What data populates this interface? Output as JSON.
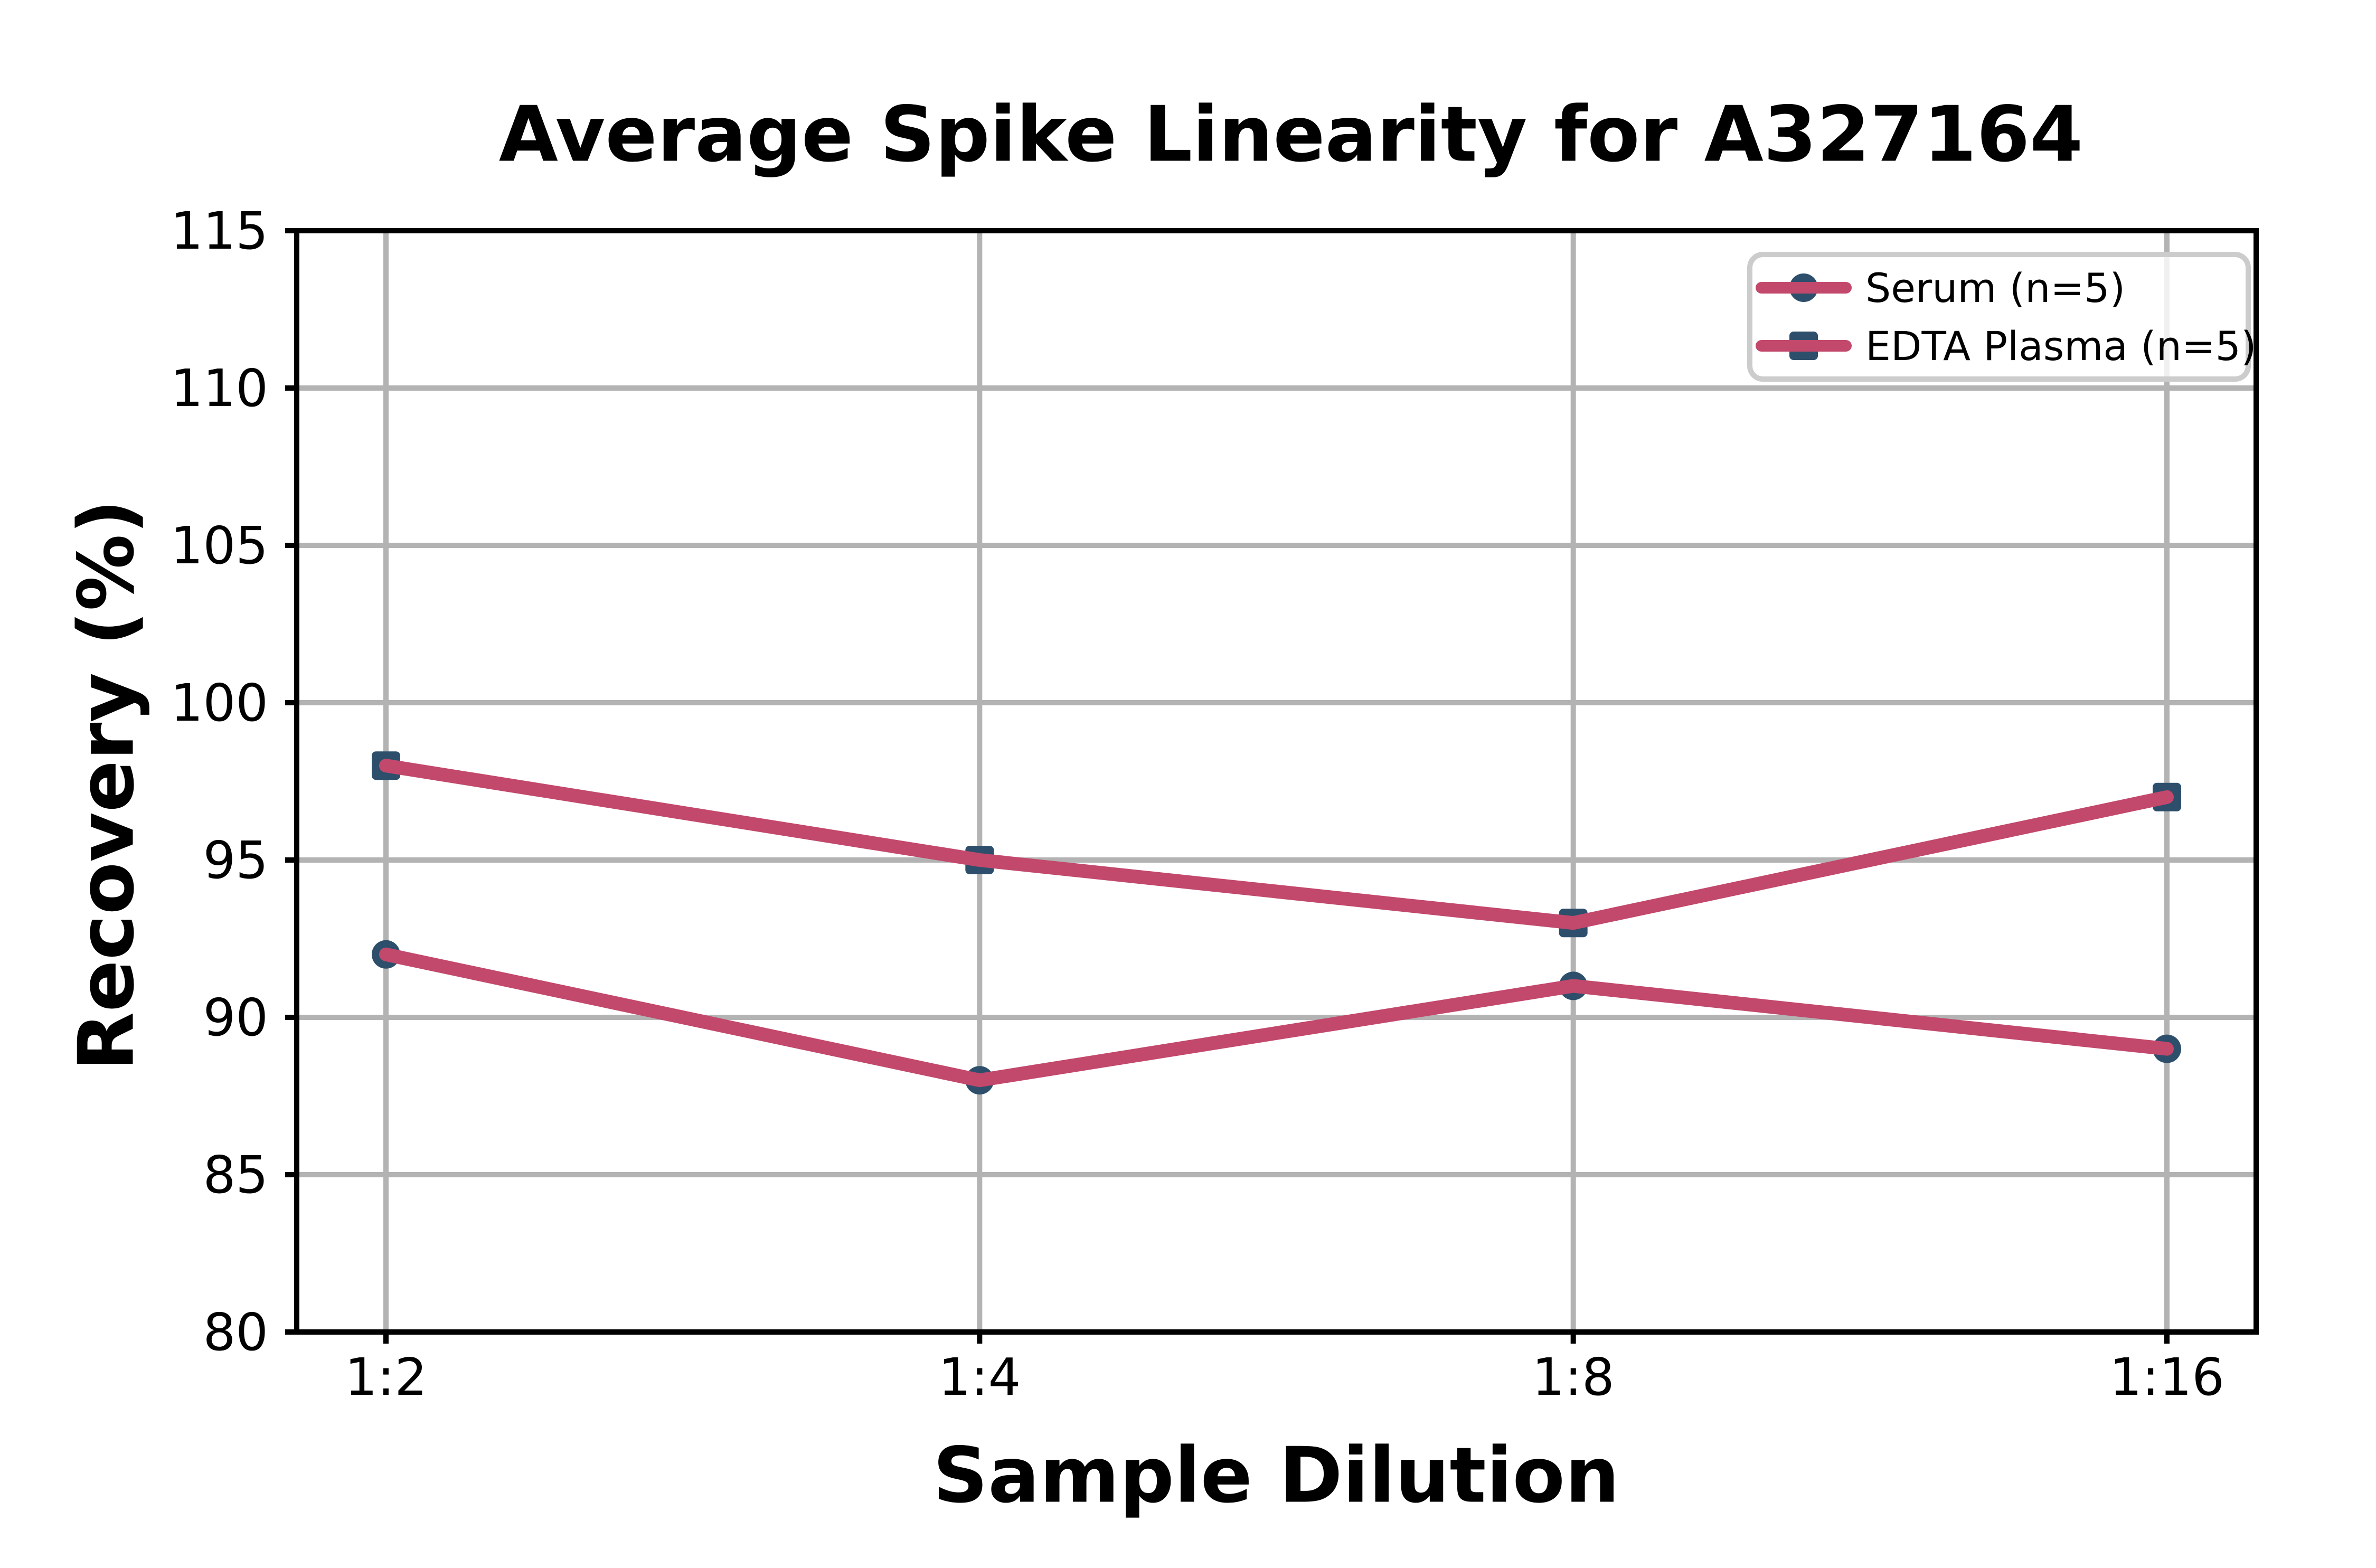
{
  "chart_data": {
    "type": "line",
    "title": "Average Spike Linearity for A327164",
    "xlabel": "Sample Dilution",
    "ylabel": "Recovery (%)",
    "categories": [
      "1:2",
      "1:4",
      "1:8",
      "1:16"
    ],
    "series": [
      {
        "name": "Serum (n=5)",
        "marker": "circle",
        "values": [
          92,
          88,
          91,
          89
        ]
      },
      {
        "name": "EDTA Plasma (n=5)",
        "marker": "square",
        "values": [
          98,
          95,
          93,
          97
        ]
      }
    ],
    "ylim": [
      80,
      115
    ],
    "yticks": [
      80,
      85,
      90,
      95,
      100,
      105,
      110,
      115
    ],
    "grid": true,
    "legend_position": "upper right",
    "colors": {
      "line": "#C2486C",
      "marker": "#2D4F6B",
      "grid": "#B3B3B3",
      "spine": "#000000",
      "text": "#000000",
      "legend_border": "#CCCCCC",
      "background": "#FFFFFF"
    }
  }
}
